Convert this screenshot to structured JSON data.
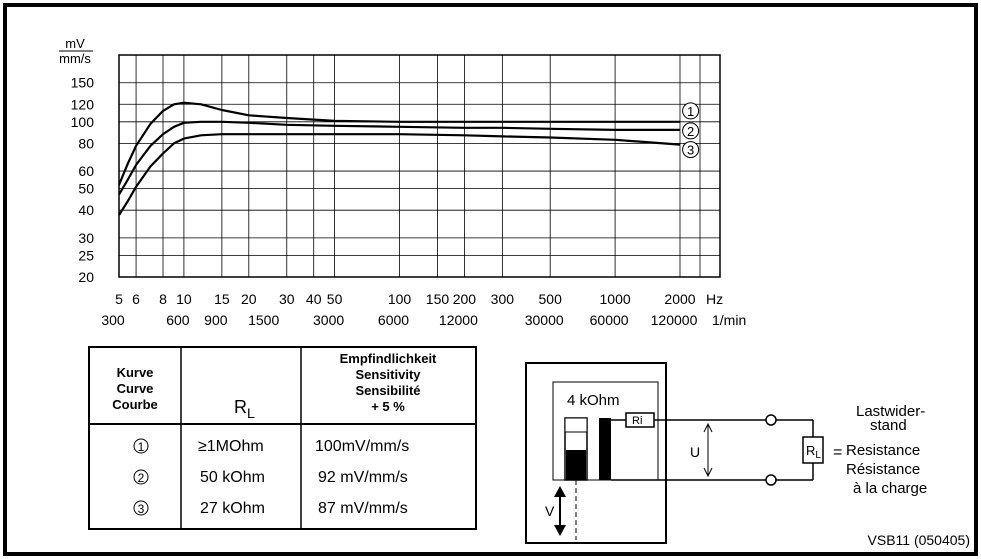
{
  "chart_data": {
    "type": "line",
    "x_scale": "log",
    "y_scale": "log",
    "xlim": [
      5,
      2000
    ],
    "ylim": [
      20,
      200
    ],
    "grid": true,
    "y_unit": {
      "numerator": "mV",
      "denominator": "mm/s"
    },
    "y_ticks": [
      20,
      25,
      30,
      40,
      50,
      60,
      80,
      100,
      120,
      150
    ],
    "x_ticks": [
      5,
      6,
      8,
      10,
      15,
      20,
      30,
      40,
      50,
      100,
      150,
      200,
      300,
      500,
      1000,
      2000
    ],
    "x_tick_labels": [
      "5",
      "6",
      "8",
      "10",
      "15",
      "20",
      "30",
      "40",
      "50",
      "100",
      "150",
      "200",
      "300",
      "500",
      "1000",
      "2000"
    ],
    "x_unit": "Hz",
    "rpm_ticks": [
      {
        "hz": 5,
        "label": "300"
      },
      {
        "hz": 10,
        "label": "600"
      },
      {
        "hz": 15,
        "label": "900"
      },
      {
        "hz": 25,
        "label": "1500"
      },
      {
        "hz": 50,
        "label": "3000"
      },
      {
        "hz": 100,
        "label": "6000"
      },
      {
        "hz": 200,
        "label": "12000"
      },
      {
        "hz": 500,
        "label": "30000"
      },
      {
        "hz": 1000,
        "label": "60000"
      },
      {
        "hz": 2000,
        "label": "120000"
      }
    ],
    "rpm_unit": "1/min",
    "series": [
      {
        "marker": "1",
        "label_at": [
          2240,
          112
        ],
        "x": [
          5,
          5.5,
          6,
          7,
          8,
          9,
          10,
          12,
          15,
          20,
          30,
          50,
          100,
          200,
          300,
          500,
          1000,
          2000
        ],
        "y": [
          52,
          65,
          78,
          98,
          112,
          120,
          122,
          120,
          113,
          107,
          104,
          101,
          100,
          100,
          100,
          100,
          100,
          100
        ]
      },
      {
        "marker": "2",
        "label_at": [
          2240,
          91
        ],
        "x": [
          5,
          5.5,
          6,
          7,
          8,
          9,
          10,
          12,
          15,
          20,
          30,
          50,
          100,
          200,
          300,
          500,
          1000,
          2000
        ],
        "y": [
          47,
          55,
          64,
          78,
          88,
          95,
          99,
          100,
          100,
          99,
          97,
          96,
          95,
          94,
          94,
          93,
          92,
          92
        ]
      },
      {
        "marker": "3",
        "label_at": [
          2240,
          75
        ],
        "x": [
          5,
          5.5,
          6,
          7,
          8,
          9,
          10,
          12,
          15,
          20,
          30,
          50,
          100,
          200,
          300,
          500,
          1000,
          2000
        ],
        "y": [
          38,
          44,
          51,
          63,
          72,
          80,
          84,
          87,
          88,
          88,
          88,
          88,
          88,
          87,
          86,
          85,
          83,
          79
        ]
      }
    ]
  },
  "table": {
    "header_curve": [
      "Kurve",
      "Curve",
      "Courbe"
    ],
    "header_rl": "R",
    "header_rl_sub": "L",
    "header_sens": [
      "Empfindlichkeit",
      "Sensitivity",
      "Sensibilité",
      "+ 5 %"
    ],
    "rows": [
      {
        "marker": "1",
        "rl": "≥1MOhm",
        "sens": "100mV/mm/s"
      },
      {
        "marker": "2",
        "rl": "50 kOhm",
        "sens": "92 mV/mm/s"
      },
      {
        "marker": "3",
        "rl": "27 kOhm",
        "sens": "87 mV/mm/s"
      }
    ]
  },
  "circuit": {
    "ri_value": "4 kOhm",
    "ri_label": "Ri",
    "u_label": "U",
    "v_label": "V",
    "rl_label": "R",
    "rl_sub": "L",
    "equals": "=",
    "load_label_lines": [
      "Lastwider-",
      "stand",
      "Resistance",
      "Résistance",
      "à la charge"
    ]
  },
  "footer": {
    "doc_code": "VSB11 (050405)"
  }
}
